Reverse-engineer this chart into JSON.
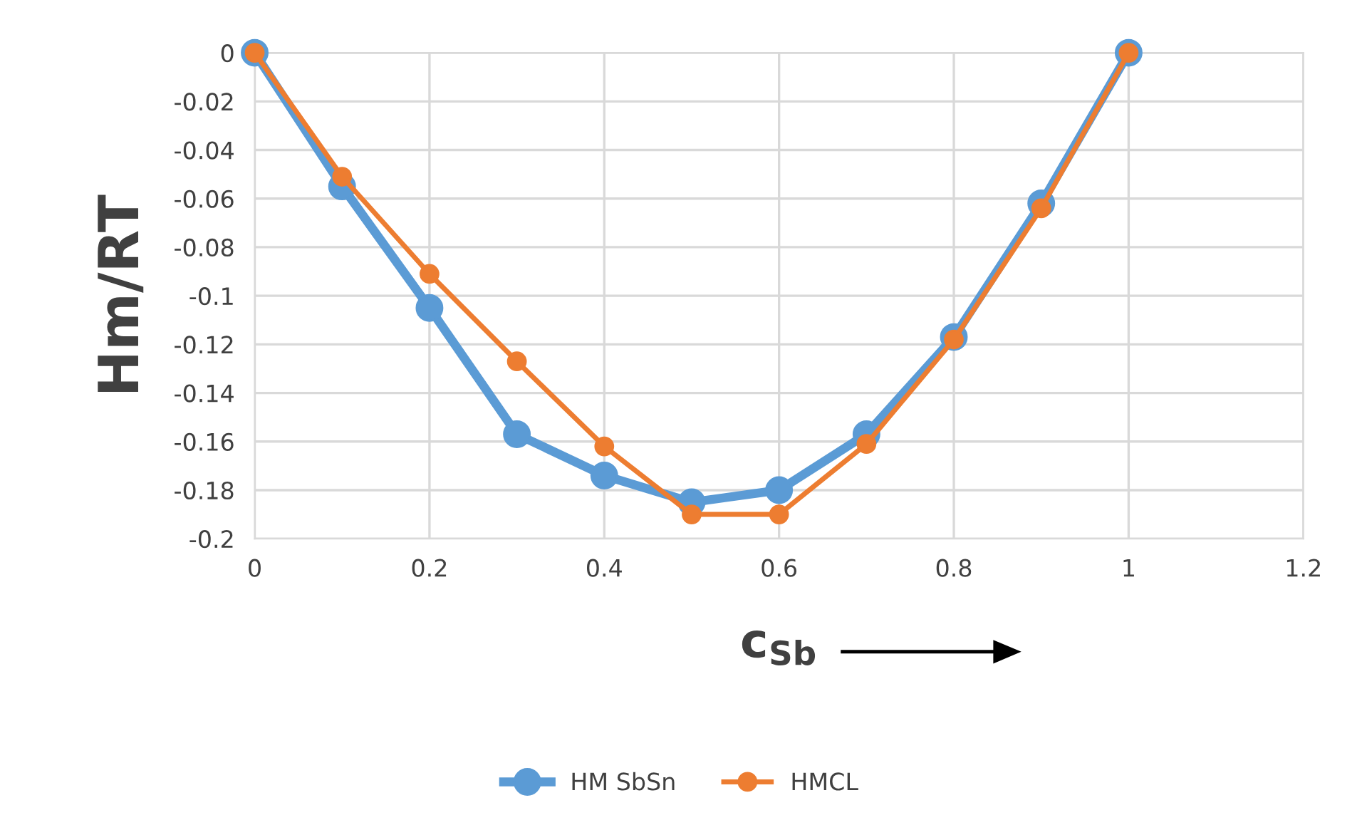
{
  "chart_data": {
    "type": "line",
    "xlabel": "c$_{Sb}$",
    "ylabel": "Hm/RT",
    "x": [
      0,
      0.1,
      0.2,
      0.3,
      0.4,
      0.5,
      0.6,
      0.7,
      0.8,
      0.9,
      1
    ],
    "series": [
      {
        "name": "HM SbSn",
        "color": "#5b9bd5",
        "values": [
          0,
          -0.055,
          -0.105,
          -0.157,
          -0.174,
          -0.185,
          -0.18,
          -0.157,
          -0.117,
          -0.062,
          0
        ]
      },
      {
        "name": "HMCL",
        "color": "#ed7d31",
        "values": [
          0,
          -0.051,
          -0.091,
          -0.127,
          -0.162,
          -0.19,
          -0.19,
          -0.161,
          -0.118,
          -0.064,
          0
        ]
      }
    ],
    "xlim": [
      0,
      1.2
    ],
    "xticks": [
      0,
      0.2,
      0.4,
      0.6,
      0.8,
      1,
      1.2
    ],
    "ylim": [
      -0.2,
      0
    ],
    "yticks": [
      -0.2,
      -0.18,
      -0.16,
      -0.14,
      -0.12,
      -0.1,
      -0.08,
      -0.06,
      -0.04,
      -0.02,
      0
    ],
    "grid": true,
    "legend": "bottom",
    "marker": "circle",
    "line_style": "solid"
  }
}
